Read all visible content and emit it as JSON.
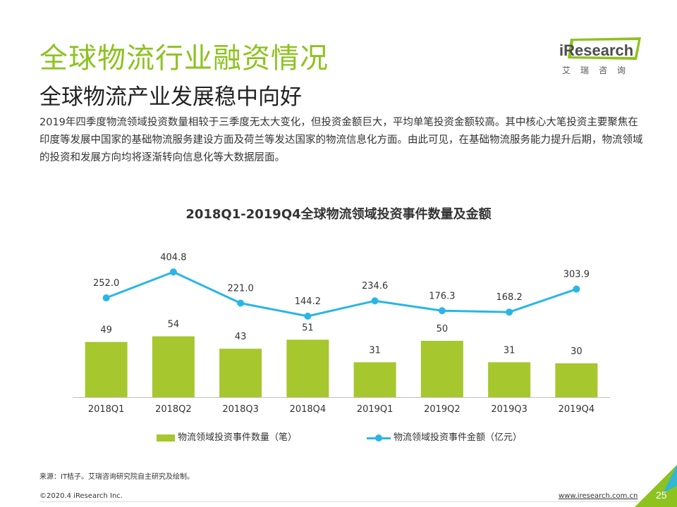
{
  "header": {
    "title": "全球物流行业融资情况",
    "subtitle": "全球物流产业发展稳中向好",
    "description": "2019年四季度物流领域投资数量相较于三季度无太大变化，但投资金额巨大，平均单笔投资金额较高。其中核心大笔投资主要聚焦在印度等发展中国家的基础物流服务建设方面及荷兰等发达国家的物流信息化方面。由此可见，在基础物流服务能力提升后期，物流领域的投资和发展方向均将逐渐转向信息化等大数据层面。"
  },
  "logo": {
    "text": "iResearch",
    "cn": "艾瑞咨询"
  },
  "chart_data": {
    "type": "bar",
    "title": "2018Q1-2019Q4全球物流领域投资事件数量及金额",
    "categories": [
      "2018Q1",
      "2018Q2",
      "2018Q3",
      "2018Q4",
      "2019Q1",
      "2019Q2",
      "2019Q3",
      "2019Q4"
    ],
    "series": [
      {
        "name": "物流领域投资事件数量（笔）",
        "type": "bar",
        "color": "#a6c72d",
        "values": [
          49,
          54,
          43,
          51,
          31,
          50,
          31,
          30
        ],
        "labels": [
          "49",
          "54",
          "43",
          "51",
          "31",
          "50",
          "31",
          "30"
        ]
      },
      {
        "name": "物流领域投资事件金额（亿元）",
        "type": "line",
        "color": "#29b6e6",
        "values": [
          252.0,
          404.8,
          221.0,
          144.2,
          234.6,
          176.3,
          168.2,
          303.9
        ],
        "labels": [
          "252.0",
          "404.8",
          "221.0",
          "144.2",
          "234.6",
          "176.3",
          "168.2",
          "303.9"
        ]
      }
    ],
    "grid": false,
    "legend_position": "bottom"
  },
  "footer": {
    "source": "来源：IT桔子。艾瑞咨询研究院自主研究及绘制。",
    "copyright": "©2020.4 iResearch Inc.",
    "website": "www.iresearch.com.cn",
    "page": "25"
  }
}
